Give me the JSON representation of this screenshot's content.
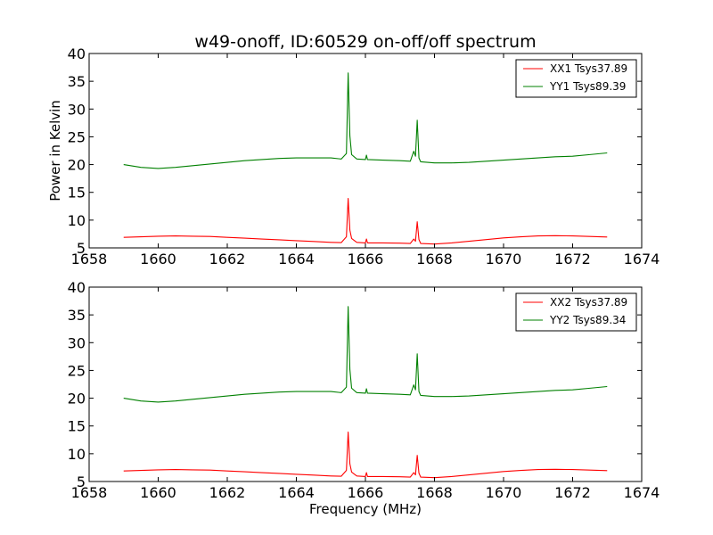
{
  "figure": {
    "title": "w49-onoff, ID:60529 on-off/off spectrum",
    "xlabel": "Frequency (MHz)",
    "ylabel": "Power in Kelvin"
  },
  "chart_data": [
    {
      "type": "line",
      "xlabel": "",
      "ylabel": "Power in Kelvin",
      "xlim": [
        1658,
        1674
      ],
      "ylim": [
        5,
        40
      ],
      "xticks": [
        1658,
        1660,
        1662,
        1664,
        1666,
        1668,
        1670,
        1672,
        1674
      ],
      "yticks": [
        5,
        10,
        15,
        20,
        25,
        30,
        35,
        40
      ],
      "grid": false,
      "legend_position": "top-right",
      "series": [
        {
          "name": "XX1 Tsys37.89",
          "color": "#ff0000",
          "x": [
            1659.0,
            1659.5,
            1660.0,
            1660.5,
            1661.0,
            1661.5,
            1662.0,
            1662.5,
            1663.0,
            1663.5,
            1664.0,
            1664.5,
            1665.0,
            1665.3,
            1665.45,
            1665.5,
            1665.55,
            1665.6,
            1665.75,
            1666.0,
            1666.03,
            1666.06,
            1666.5,
            1667.0,
            1667.3,
            1667.4,
            1667.45,
            1667.5,
            1667.55,
            1667.6,
            1668.0,
            1668.5,
            1669.0,
            1669.5,
            1670.0,
            1670.5,
            1671.0,
            1671.5,
            1672.0,
            1672.5,
            1673.0
          ],
          "y": [
            6.9,
            7.0,
            7.1,
            7.15,
            7.1,
            7.05,
            6.9,
            6.75,
            6.6,
            6.45,
            6.3,
            6.15,
            6.0,
            5.95,
            7.0,
            13.9,
            8.2,
            6.7,
            6.0,
            5.9,
            6.6,
            5.9,
            5.9,
            5.85,
            5.8,
            6.6,
            6.2,
            9.7,
            6.5,
            5.8,
            5.7,
            5.9,
            6.2,
            6.5,
            6.8,
            7.0,
            7.15,
            7.2,
            7.15,
            7.05,
            6.95
          ]
        },
        {
          "name": "YY1 Tsys89.39",
          "color": "#008000",
          "x": [
            1659.0,
            1659.5,
            1660.0,
            1660.5,
            1661.0,
            1661.5,
            1662.0,
            1662.5,
            1663.0,
            1663.5,
            1664.0,
            1664.5,
            1665.0,
            1665.3,
            1665.45,
            1665.5,
            1665.55,
            1665.6,
            1665.75,
            1666.0,
            1666.03,
            1666.06,
            1666.5,
            1667.0,
            1667.3,
            1667.4,
            1667.45,
            1667.5,
            1667.55,
            1667.6,
            1668.0,
            1668.5,
            1669.0,
            1669.5,
            1670.0,
            1670.5,
            1671.0,
            1671.5,
            1672.0,
            1672.5,
            1673.0
          ],
          "y": [
            20.0,
            19.5,
            19.3,
            19.5,
            19.8,
            20.1,
            20.4,
            20.7,
            20.9,
            21.1,
            21.2,
            21.2,
            21.2,
            21.0,
            22.0,
            36.5,
            25.2,
            21.8,
            21.0,
            20.9,
            21.7,
            20.9,
            20.8,
            20.7,
            20.6,
            22.4,
            21.5,
            28.0,
            21.2,
            20.5,
            20.3,
            20.3,
            20.4,
            20.6,
            20.8,
            21.0,
            21.2,
            21.4,
            21.5,
            21.8,
            22.1
          ]
        }
      ]
    },
    {
      "type": "line",
      "xlabel": "Frequency (MHz)",
      "ylabel": "",
      "xlim": [
        1658,
        1674
      ],
      "ylim": [
        5,
        40
      ],
      "xticks": [
        1658,
        1660,
        1662,
        1664,
        1666,
        1668,
        1670,
        1672,
        1674
      ],
      "yticks": [
        5,
        10,
        15,
        20,
        25,
        30,
        35,
        40
      ],
      "grid": false,
      "legend_position": "top-right",
      "series": [
        {
          "name": "XX2 Tsys37.89",
          "color": "#ff0000",
          "x": [
            1659.0,
            1659.5,
            1660.0,
            1660.5,
            1661.0,
            1661.5,
            1662.0,
            1662.5,
            1663.0,
            1663.5,
            1664.0,
            1664.5,
            1665.0,
            1665.3,
            1665.45,
            1665.5,
            1665.55,
            1665.6,
            1665.75,
            1666.0,
            1666.03,
            1666.06,
            1666.5,
            1667.0,
            1667.3,
            1667.4,
            1667.45,
            1667.5,
            1667.55,
            1667.6,
            1668.0,
            1668.5,
            1669.0,
            1669.5,
            1670.0,
            1670.5,
            1671.0,
            1671.5,
            1672.0,
            1672.5,
            1673.0
          ],
          "y": [
            6.9,
            7.0,
            7.1,
            7.15,
            7.1,
            7.05,
            6.9,
            6.75,
            6.6,
            6.45,
            6.3,
            6.15,
            6.0,
            5.95,
            7.0,
            13.9,
            8.2,
            6.7,
            6.0,
            5.9,
            6.6,
            5.9,
            5.9,
            5.85,
            5.8,
            6.6,
            6.2,
            9.7,
            6.5,
            5.8,
            5.7,
            5.9,
            6.2,
            6.5,
            6.8,
            7.0,
            7.15,
            7.2,
            7.15,
            7.05,
            6.95
          ]
        },
        {
          "name": "YY2 Tsys89.34",
          "color": "#008000",
          "x": [
            1659.0,
            1659.5,
            1660.0,
            1660.5,
            1661.0,
            1661.5,
            1662.0,
            1662.5,
            1663.0,
            1663.5,
            1664.0,
            1664.5,
            1665.0,
            1665.3,
            1665.45,
            1665.5,
            1665.55,
            1665.6,
            1665.75,
            1666.0,
            1666.03,
            1666.06,
            1666.5,
            1667.0,
            1667.3,
            1667.4,
            1667.45,
            1667.5,
            1667.55,
            1667.6,
            1668.0,
            1668.5,
            1669.0,
            1669.5,
            1670.0,
            1670.5,
            1671.0,
            1671.5,
            1672.0,
            1672.5,
            1673.0
          ],
          "y": [
            20.0,
            19.5,
            19.3,
            19.5,
            19.8,
            20.1,
            20.4,
            20.7,
            20.9,
            21.1,
            21.2,
            21.2,
            21.2,
            21.0,
            22.0,
            36.5,
            25.2,
            21.8,
            21.0,
            20.9,
            21.7,
            20.9,
            20.8,
            20.7,
            20.6,
            22.4,
            21.5,
            28.0,
            21.2,
            20.5,
            20.3,
            20.3,
            20.4,
            20.6,
            20.8,
            21.0,
            21.2,
            21.4,
            21.5,
            21.8,
            22.1
          ]
        }
      ]
    }
  ]
}
